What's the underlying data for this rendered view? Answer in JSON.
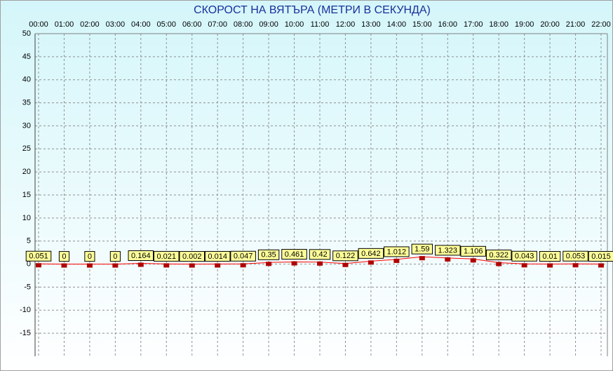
{
  "chart_data": {
    "type": "line",
    "title": "СКОРОСТ НА ВЯТЪРА (МЕТРИ В СЕКУНДА)",
    "categories": [
      "00:00",
      "01:00",
      "02:00",
      "03:00",
      "04:00",
      "05:00",
      "06:00",
      "07:00",
      "08:00",
      "09:00",
      "10:00",
      "11:00",
      "12:00",
      "13:00",
      "14:00",
      "15:00",
      "16:00",
      "17:00",
      "18:00",
      "19:00",
      "20:00",
      "21:00",
      "22:00"
    ],
    "values": [
      0.051,
      0,
      0,
      0,
      0.164,
      0.021,
      0.002,
      0.014,
      0.047,
      0.35,
      0.461,
      0.42,
      0.122,
      0.642,
      1.012,
      1.59,
      1.323,
      1.106,
      0.322,
      0.043,
      0.01,
      0.053,
      0.015
    ],
    "color": "#ff0000",
    "marker_color": "#b00000",
    "label_color": "#ffff99",
    "ylim": [
      -20,
      50
    ],
    "yticks": [
      -15,
      -10,
      -5,
      0,
      5,
      10,
      15,
      20,
      25,
      30,
      35,
      40,
      45,
      50
    ],
    "grid": true
  }
}
